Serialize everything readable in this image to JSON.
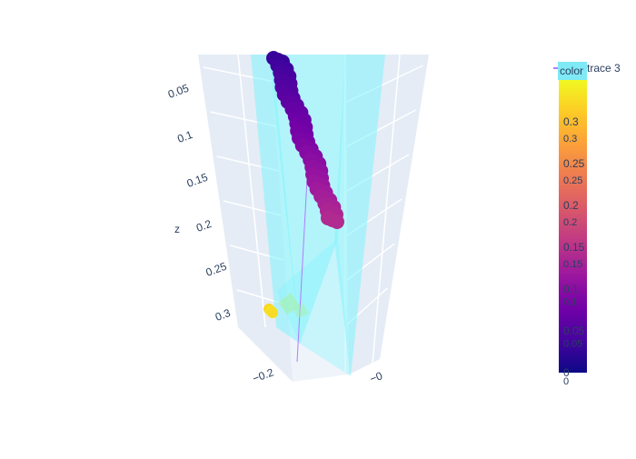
{
  "chart_data": {
    "type": "scatter3d",
    "title": "",
    "axes": {
      "z": {
        "label": "z",
        "ticks": [
          0.05,
          0.1,
          0.15,
          0.2,
          0.25,
          0.3
        ],
        "tick_labels": [
          "0.05",
          "0.1",
          "0.15",
          "0.2",
          "0.25",
          "0.3"
        ],
        "range": [
          0.02,
          0.34
        ]
      },
      "x": {
        "label": "",
        "tick_labels": [
          "−0.2",
          "−0"
        ]
      }
    },
    "series": [
      {
        "kind": "markers",
        "colored_by": "color",
        "points": [
          {
            "z": 0.005,
            "c": 0.03
          },
          {
            "z": 0.012,
            "c": 0.035
          },
          {
            "z": 0.02,
            "c": 0.04
          },
          {
            "z": 0.028,
            "c": 0.045
          },
          {
            "z": 0.036,
            "c": 0.05
          },
          {
            "z": 0.044,
            "c": 0.055
          },
          {
            "z": 0.052,
            "c": 0.06
          },
          {
            "z": 0.06,
            "c": 0.065
          },
          {
            "z": 0.068,
            "c": 0.07
          },
          {
            "z": 0.076,
            "c": 0.075
          },
          {
            "z": 0.084,
            "c": 0.08
          },
          {
            "z": 0.092,
            "c": 0.085
          },
          {
            "z": 0.1,
            "c": 0.09
          },
          {
            "z": 0.108,
            "c": 0.095
          },
          {
            "z": 0.116,
            "c": 0.1
          },
          {
            "z": 0.124,
            "c": 0.105
          },
          {
            "z": 0.132,
            "c": 0.11
          },
          {
            "z": 0.14,
            "c": 0.115
          },
          {
            "z": 0.148,
            "c": 0.12
          },
          {
            "z": 0.156,
            "c": 0.125
          },
          {
            "z": 0.164,
            "c": 0.13
          },
          {
            "z": 0.172,
            "c": 0.135
          },
          {
            "z": 0.18,
            "c": 0.14
          }
        ]
      },
      {
        "kind": "markers",
        "colored_by": "color",
        "points": [
          {
            "z": 0.296,
            "c": 0.32
          },
          {
            "z": 0.3,
            "c": 0.33
          },
          {
            "z": 0.304,
            "c": 0.325
          }
        ]
      },
      {
        "kind": "line",
        "name": "trace 3",
        "color": "#b07cff"
      }
    ],
    "surfaces": {
      "color": "#82f4fb",
      "opacity": 0.55
    },
    "legend": {
      "position": "top-right",
      "entries": [
        "color",
        "trace 3"
      ],
      "color_swatch": "#7fe9f5"
    },
    "colorbar": {
      "colorscale": [
        "#0d0887",
        "#46039f",
        "#7201a8",
        "#9c179e",
        "#bd3786",
        "#d8576b",
        "#ed7953",
        "#fb9f3a",
        "#fdca26",
        "#f0f921"
      ],
      "range": [
        0,
        0.35
      ],
      "ticks_a": [
        "0",
        "0.05",
        "0.1",
        "0.15",
        "0.2",
        "0.25",
        "0.3"
      ],
      "ticks_a_values": [
        0,
        0.05,
        0.1,
        0.15,
        0.2,
        0.25,
        0.3
      ],
      "ticks_b": [
        "0",
        "0.05",
        "0.1",
        "0.15",
        "0.2",
        "0.25",
        "0.3"
      ],
      "ticks_b_values": [
        0,
        0.045,
        0.095,
        0.14,
        0.19,
        0.24,
        0.29
      ]
    },
    "scene_bg": "#e5ecf6",
    "grid": true
  }
}
